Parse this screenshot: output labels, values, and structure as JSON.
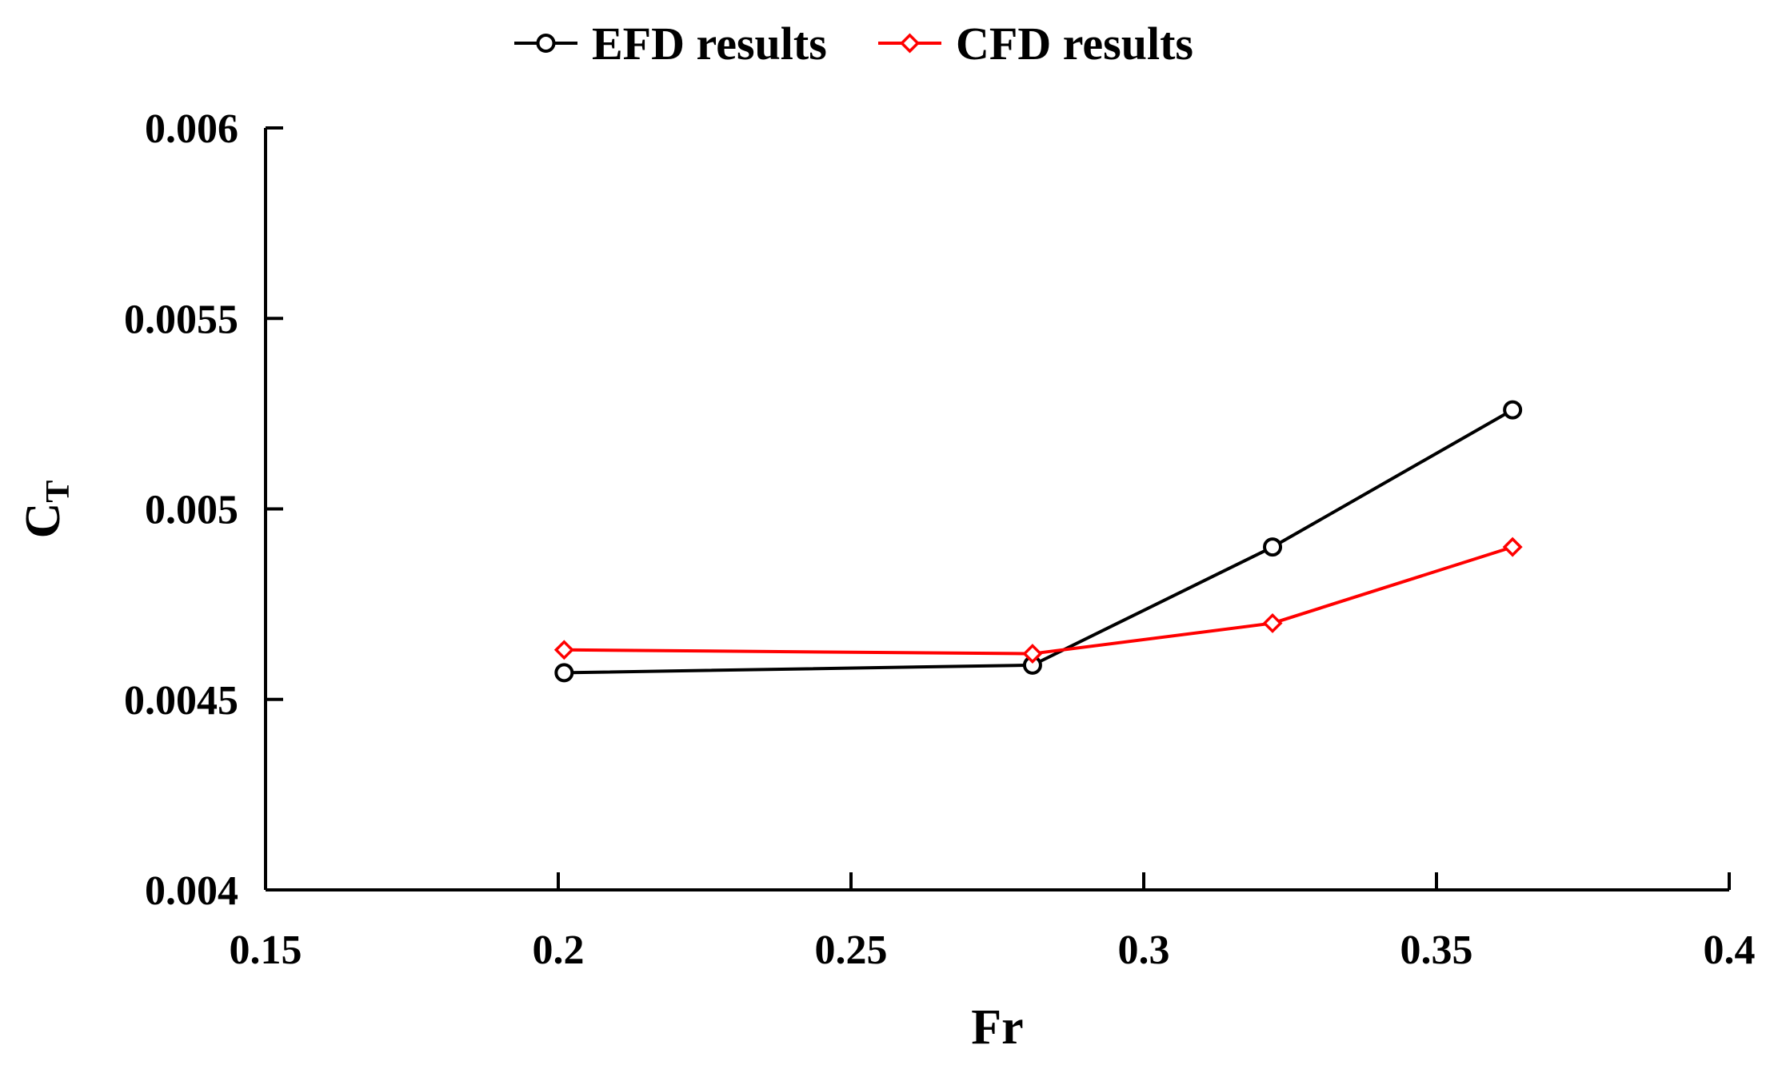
{
  "chart_data": {
    "type": "line",
    "title": "",
    "xlabel": "Fr",
    "ylabel": "C",
    "ylabel_subscript": "T",
    "xlim": [
      0.15,
      0.4
    ],
    "ylim": [
      0.004,
      0.006
    ],
    "x_ticks": [
      0.15,
      0.2,
      0.25,
      0.3,
      0.35,
      0.4
    ],
    "x_tick_labels": [
      "0.15",
      "0.2",
      "0.25",
      "0.3",
      "0.35",
      "0.4"
    ],
    "y_ticks": [
      0.004,
      0.0045,
      0.005,
      0.0055,
      0.006
    ],
    "y_tick_labels": [
      "0.004",
      "0.0045",
      "0.005",
      "0.0055",
      "0.006"
    ],
    "grid": false,
    "legend_position": "top-center",
    "series": [
      {
        "name": "EFD results",
        "color": "#000000",
        "marker": "circle",
        "x": [
          0.201,
          0.281,
          0.322,
          0.363
        ],
        "y": [
          0.00457,
          0.00459,
          0.0049,
          0.00526
        ]
      },
      {
        "name": "CFD results",
        "color": "#ff0000",
        "marker": "diamond",
        "x": [
          0.201,
          0.281,
          0.322,
          0.363
        ],
        "y": [
          0.00463,
          0.00462,
          0.0047,
          0.0049
        ]
      }
    ]
  }
}
